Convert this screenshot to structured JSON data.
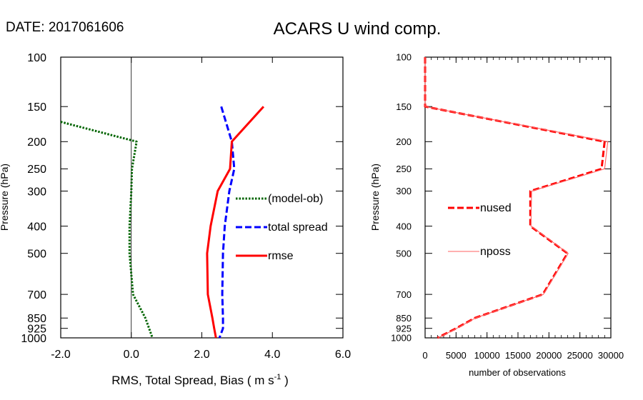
{
  "date_label": "DATE: 2017061606",
  "title": "ACARS U wind comp.",
  "chart_data": [
    {
      "type": "line",
      "xlabel": "RMS, Total Spread, Bias ( m s",
      "xlabel_sup": "-1",
      "xlabel_end": " )",
      "ylabel": "Pressure (hPa)",
      "xlim": [
        -2.0,
        6.0
      ],
      "ylim": [
        1000,
        100
      ],
      "y_scale": "log",
      "x_ticks": [
        "-2.0",
        "0.0",
        "2.0",
        "4.0",
        "6.0"
      ],
      "y_ticks": [
        "100",
        "150",
        "200",
        "250",
        "300",
        "400",
        "500",
        "700",
        "850",
        "925",
        "1000"
      ],
      "zero_line": 0.0,
      "legend_placement": "right",
      "series": [
        {
          "name": "(model-ob)",
          "color": "#006400",
          "style": "dotted",
          "points": [
            [
              -2.0,
              170
            ],
            [
              0.15,
              200
            ],
            [
              0.02,
              250
            ],
            [
              0.0,
              300
            ],
            [
              -0.05,
              400
            ],
            [
              -0.05,
              500
            ],
            [
              0.05,
              700
            ],
            [
              0.4,
              850
            ],
            [
              0.6,
              1000
            ]
          ]
        },
        {
          "name": "total spread",
          "color": "#0000ff",
          "style": "dashed",
          "points": [
            [
              2.55,
              150
            ],
            [
              2.85,
              200
            ],
            [
              2.92,
              250
            ],
            [
              2.78,
              300
            ],
            [
              2.65,
              400
            ],
            [
              2.6,
              500
            ],
            [
              2.58,
              700
            ],
            [
              2.6,
              850
            ],
            [
              2.6,
              925
            ],
            [
              2.5,
              1000
            ]
          ]
        },
        {
          "name": "rmse",
          "color": "#ff0000",
          "style": "solid",
          "points": [
            [
              3.75,
              150
            ],
            [
              2.85,
              200
            ],
            [
              2.8,
              250
            ],
            [
              2.45,
              300
            ],
            [
              2.25,
              400
            ],
            [
              2.15,
              500
            ],
            [
              2.17,
              700
            ],
            [
              2.3,
              850
            ],
            [
              2.35,
              925
            ],
            [
              2.4,
              1000
            ]
          ]
        }
      ]
    },
    {
      "type": "line",
      "xlabel": "number of observations",
      "ylabel": "Pressure (hPa)",
      "xlim": [
        0,
        30000
      ],
      "ylim": [
        1000,
        100
      ],
      "y_scale": "log",
      "x_ticks": [
        "0",
        "5000",
        "10000",
        "15000",
        "20000",
        "25000",
        "30000"
      ],
      "y_ticks": [
        "100",
        "150",
        "200",
        "250",
        "300",
        "400",
        "500",
        "700",
        "850",
        "925",
        "1000"
      ],
      "legend_placement": "center-left",
      "series": [
        {
          "name": "nused",
          "color": "#ff0000",
          "style": "dashed",
          "points": [
            [
              0,
              100
            ],
            [
              0,
              150
            ],
            [
              29000,
              200
            ],
            [
              28500,
              250
            ],
            [
              17000,
              300
            ],
            [
              17000,
              400
            ],
            [
              23000,
              500
            ],
            [
              19000,
              700
            ],
            [
              8000,
              850
            ],
            [
              5000,
              925
            ],
            [
              2000,
              1000
            ]
          ]
        },
        {
          "name": "nposs",
          "color": "#ff6060",
          "style": "solid",
          "points": [
            [
              0,
              100
            ],
            [
              0,
              150
            ],
            [
              29500,
              200
            ],
            [
              29000,
              250
            ],
            [
              17200,
              300
            ],
            [
              17100,
              400
            ],
            [
              23100,
              500
            ],
            [
              19100,
              700
            ],
            [
              8100,
              850
            ],
            [
              5100,
              925
            ],
            [
              2100,
              1000
            ]
          ]
        }
      ]
    }
  ]
}
